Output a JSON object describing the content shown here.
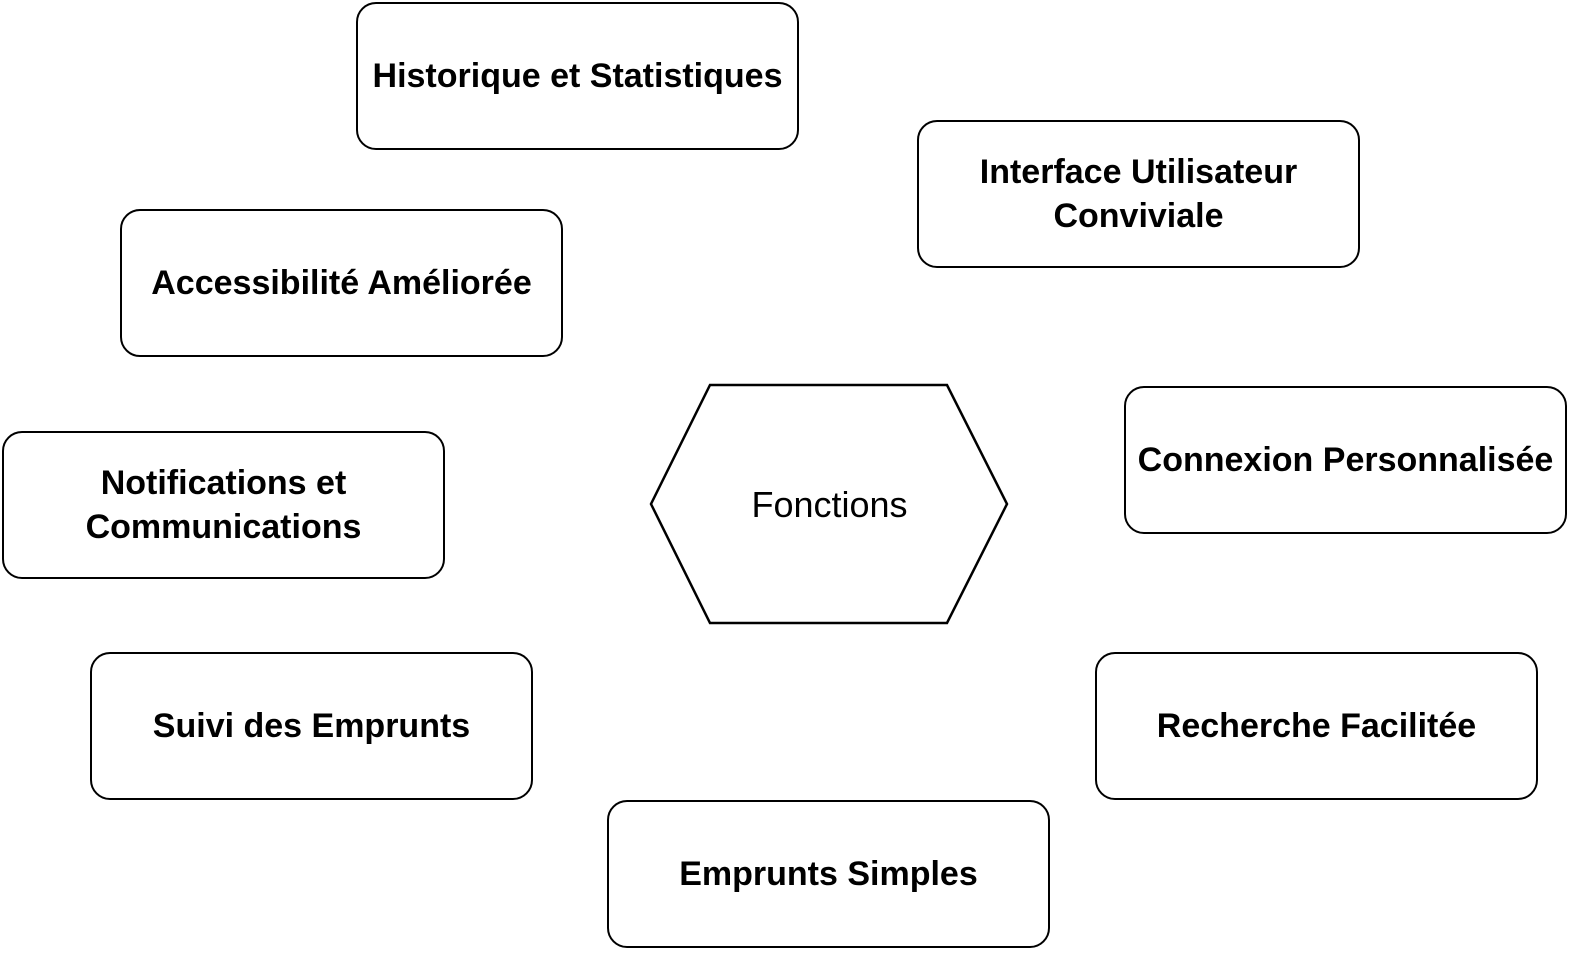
{
  "center": {
    "label": "Fonctions"
  },
  "functions": {
    "historique": "Historique et Statistiques",
    "interface": "Interface Utilisateur\nConviviale",
    "accessibilite": "Accessibilité Améliorée",
    "connexion": "Connexion Personnalisée",
    "notifications": "Notifications et\nCommunications",
    "suivi": "Suivi des Emprunts",
    "recherche": "Recherche Facilitée",
    "emprunts": "Emprunts Simples"
  },
  "colors": {
    "stroke": "#000000",
    "fill": "#ffffff",
    "text": "#000000"
  }
}
